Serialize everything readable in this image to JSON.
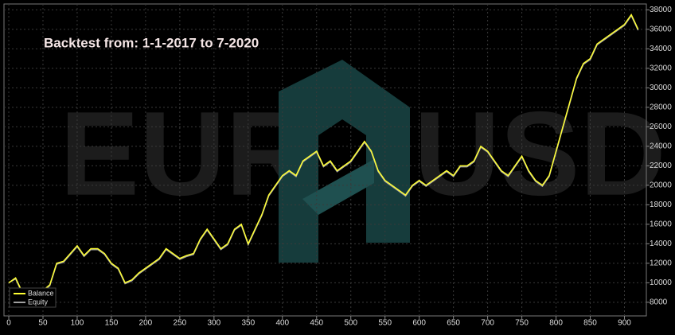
{
  "chart_data": {
    "type": "line",
    "annotation": "Backtest from: 1-1-2017 to 7-2020",
    "watermark": [
      "EUR",
      "USD"
    ],
    "x": [
      0,
      10,
      20,
      30,
      40,
      50,
      60,
      70,
      80,
      90,
      100,
      110,
      120,
      130,
      140,
      150,
      160,
      170,
      180,
      190,
      200,
      210,
      220,
      230,
      240,
      250,
      260,
      270,
      280,
      290,
      300,
      310,
      320,
      330,
      340,
      350,
      360,
      370,
      380,
      390,
      400,
      410,
      420,
      430,
      440,
      450,
      460,
      470,
      480,
      490,
      500,
      510,
      520,
      530,
      540,
      550,
      560,
      570,
      580,
      590,
      600,
      610,
      620,
      630,
      640,
      650,
      660,
      670,
      680,
      690,
      700,
      710,
      720,
      730,
      740,
      750,
      760,
      770,
      780,
      790,
      800,
      810,
      820,
      830,
      840,
      850,
      860,
      870,
      880,
      890,
      900,
      910,
      920
    ],
    "series": [
      {
        "name": "Balance",
        "color": "#ffff33",
        "values": [
          10000,
          10500,
          9000,
          8500,
          8800,
          9200,
          9800,
          12000,
          12200,
          13000,
          13800,
          12800,
          13500,
          13500,
          13000,
          12000,
          11500,
          10000,
          10300,
          11000,
          11500,
          12000,
          12500,
          13500,
          13000,
          12500,
          12800,
          13000,
          14500,
          15500,
          14500,
          13500,
          14000,
          15500,
          16000,
          14000,
          15500,
          17000,
          19000,
          20000,
          21000,
          21500,
          21000,
          22500,
          23000,
          23500,
          22000,
          22500,
          21500,
          22000,
          22500,
          23500,
          24500,
          23500,
          21500,
          20500,
          20000,
          19500,
          19000,
          20000,
          20500,
          20000,
          20500,
          21000,
          21500,
          21000,
          22000,
          22000,
          22500,
          24000,
          23500,
          22500,
          21500,
          21000,
          22000,
          23000,
          21500,
          20500,
          20000,
          21000,
          23500,
          26000,
          28500,
          31000,
          32500,
          33000,
          34500,
          35000,
          35500,
          36000,
          36500,
          37500,
          36000
        ]
      },
      {
        "name": "Equity",
        "color": "#a0a0a0",
        "values": [
          10000,
          10400,
          8900,
          8400,
          8700,
          9100,
          9700,
          11900,
          12100,
          12900,
          13700,
          12700,
          13400,
          13400,
          12900,
          11900,
          11400,
          9900,
          10200,
          10900,
          11400,
          11900,
          12400,
          13400,
          12900,
          12400,
          12700,
          12900,
          14400,
          15400,
          14400,
          13400,
          13900,
          15400,
          15900,
          13900,
          15400,
          16900,
          18900,
          19900,
          20900,
          21400,
          20900,
          22400,
          22900,
          23400,
          21900,
          22400,
          21400,
          21900,
          22400,
          23400,
          24400,
          23400,
          21400,
          20400,
          19900,
          19400,
          18900,
          19900,
          20400,
          19900,
          20400,
          20900,
          21400,
          20900,
          21900,
          21900,
          22400,
          23900,
          23400,
          22400,
          21400,
          20900,
          21900,
          22900,
          21400,
          20400,
          19900,
          20900,
          23400,
          25900,
          28400,
          30900,
          32400,
          32900,
          34400,
          34900,
          35400,
          35900,
          36400,
          37400,
          35900
        ]
      }
    ],
    "xlim": [
      -7,
      932
    ],
    "ylim": [
      6600,
      38600
    ],
    "xticks": [
      0,
      50,
      100,
      150,
      200,
      250,
      300,
      350,
      400,
      450,
      500,
      550,
      600,
      650,
      700,
      750,
      800,
      850,
      900
    ],
    "yticks": [
      8000,
      10000,
      12000,
      14000,
      16000,
      18000,
      20000,
      22000,
      24000,
      26000,
      28000,
      30000,
      32000,
      34000,
      36000,
      38000
    ],
    "grid": true
  }
}
